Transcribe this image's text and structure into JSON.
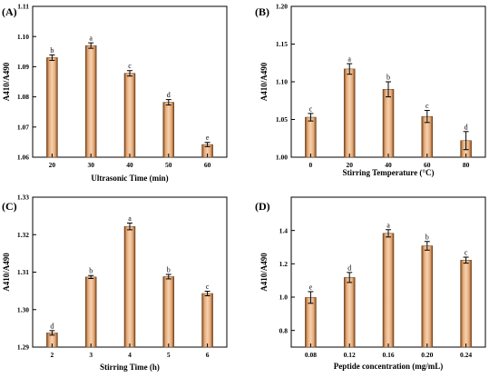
{
  "chart_data": [
    {
      "type": "bar",
      "panel": "(A)",
      "xlabel": "Ultrasonic Time (min)",
      "ylabel": "A410/A490",
      "categories": [
        "20",
        "30",
        "40",
        "50",
        "60"
      ],
      "values": [
        1.093,
        1.097,
        1.0878,
        1.0782,
        1.0642
      ],
      "errors": [
        0.0009,
        0.0009,
        0.0009,
        0.0009,
        0.0007
      ],
      "labels": [
        "b",
        "a",
        "c",
        "d",
        "e"
      ],
      "ylim": [
        1.06,
        1.11
      ],
      "yticks": [
        "1.06",
        "1.07",
        "1.08",
        "1.09",
        "1.10",
        "1.11"
      ]
    },
    {
      "type": "bar",
      "panel": "(B)",
      "xlabel": "Stirring Temperature (°C)",
      "ylabel": "A410/A490",
      "categories": [
        "0",
        "20",
        "40",
        "60",
        "80"
      ],
      "values": [
        1.053,
        1.117,
        1.09,
        1.054,
        1.022
      ],
      "errors": [
        0.005,
        0.007,
        0.01,
        0.008,
        0.012
      ],
      "labels": [
        "c",
        "a",
        "b",
        "c",
        "d"
      ],
      "ylim": [
        1.0,
        1.2
      ],
      "yticks": [
        "1.00",
        "1.05",
        "1.10",
        "1.15",
        "1.20"
      ]
    },
    {
      "type": "bar",
      "panel": "(C)",
      "xlabel": "Stirring Time (h)",
      "ylabel": "A410/A490",
      "categories": [
        "2",
        "3",
        "4",
        "5",
        "6"
      ],
      "values": [
        1.2938,
        1.3087,
        1.3222,
        1.3088,
        1.3043
      ],
      "errors": [
        0.0006,
        0.0004,
        0.0009,
        0.0006,
        0.0006
      ],
      "labels": [
        "d",
        "b",
        "a",
        "b",
        "c"
      ],
      "ylim": [
        1.29,
        1.33
      ],
      "yticks": [
        "1.29",
        "1.30",
        "1.31",
        "1.32",
        "1.33"
      ]
    },
    {
      "type": "bar",
      "panel": "(D)",
      "xlabel": "Peptide concentration (mg/mL)",
      "ylabel": "A410/A490",
      "categories": [
        "0.08",
        "0.12",
        "0.16",
        "0.20",
        "0.24"
      ],
      "values": [
        0.998,
        1.118,
        1.383,
        1.308,
        1.222
      ],
      "errors": [
        0.035,
        0.03,
        0.022,
        0.026,
        0.018
      ],
      "labels": [
        "e",
        "d",
        "a",
        "b",
        "c"
      ],
      "ylim": [
        0.7,
        1.6
      ],
      "yticks": [
        "0.8",
        "1.0",
        "1.2",
        "1.4"
      ]
    }
  ],
  "colors": {
    "bar_dark": "#7a4416",
    "bar_light": "#f6d2ae",
    "bar_mid": "#e3a878"
  }
}
